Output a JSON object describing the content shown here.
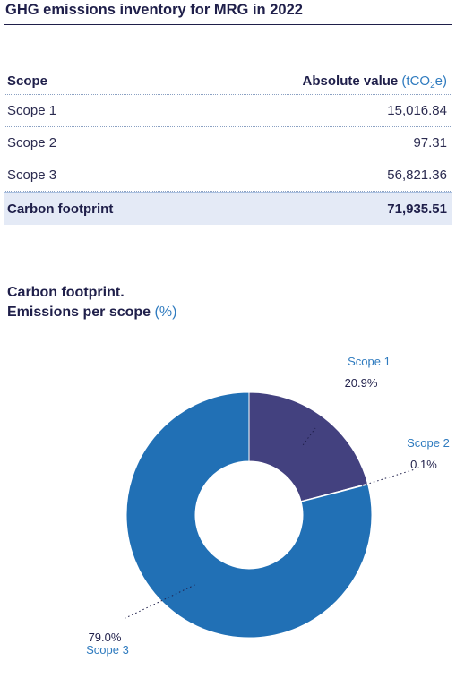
{
  "title": "GHG emissions inventory for MRG in 2022",
  "table": {
    "header": {
      "scope": "Scope",
      "value": "Absolute value",
      "unit_prefix": "(tCO",
      "unit_sub": "2",
      "unit_suffix": "e)"
    },
    "rows": [
      {
        "label": "Scope 1",
        "value": "15,016.84"
      },
      {
        "label": "Scope 2",
        "value": "97.31"
      },
      {
        "label": "Scope 3",
        "value": "56,821.36"
      }
    ],
    "total": {
      "label": "Carbon footprint",
      "value": "71,935.51"
    }
  },
  "chart_title": {
    "line1": "Carbon footprint.",
    "line2": "Emissions per scope",
    "unit": "(%)"
  },
  "chart_data": {
    "type": "pie",
    "title": "Carbon footprint. Emissions per scope (%)",
    "donut": true,
    "categories": [
      "Scope 1",
      "Scope 2",
      "Scope 3"
    ],
    "values": [
      20.9,
      0.1,
      79.0
    ],
    "value_labels": [
      "20.9%",
      "0.1%",
      "79.0%"
    ],
    "colors": [
      "#43417f",
      "#c9c9d3",
      "#2170b5"
    ]
  },
  "colors": {
    "navy": "#1f1f4a",
    "accent": "#2f7bbf",
    "total_bg": "#e4eaf6"
  }
}
